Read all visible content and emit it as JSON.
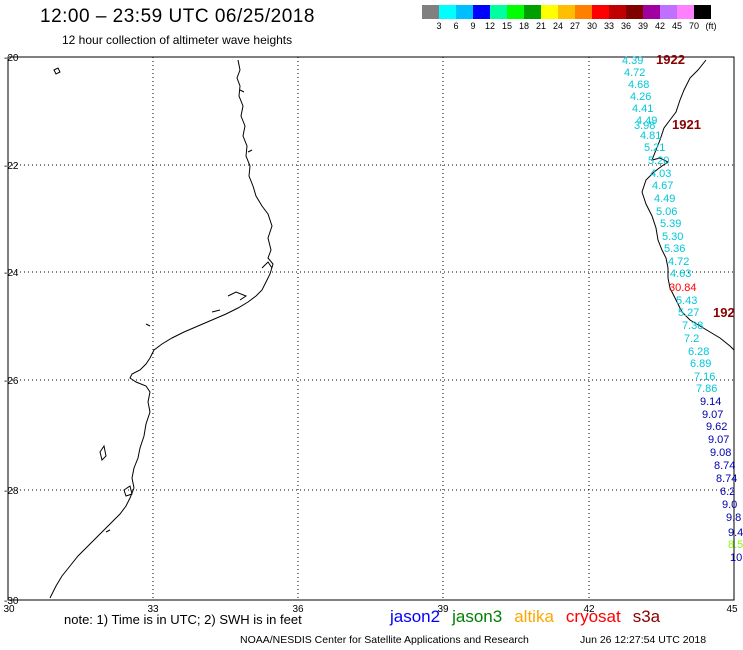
{
  "header": {
    "title": "12:00 – 23:59 UTC 06/25/2018",
    "subtitle": "12 hour collection of altimeter wave heights"
  },
  "legend": {
    "swatches": [
      "#808080",
      "#00ffff",
      "#00bfff",
      "#0000ff",
      "#00ffa0",
      "#00ff00",
      "#009f00",
      "#ffff00",
      "#ffbf00",
      "#ff7f00",
      "#ff0000",
      "#c00000",
      "#800000",
      "#a000a0",
      "#c070ff",
      "#ff80ff",
      "#000000"
    ],
    "labels": [
      "3",
      "6",
      "9",
      "12",
      "15",
      "18",
      "21",
      "24",
      "27",
      "30",
      "33",
      "36",
      "39",
      "42",
      "45",
      "70",
      "(ft)"
    ]
  },
  "map": {
    "lat_labels": [
      "-20",
      "-22",
      "-24",
      "-26",
      "-28",
      "-30"
    ],
    "lon_labels": [
      "30",
      "33",
      "36",
      "39",
      "42",
      "45"
    ]
  },
  "tracks": [
    {
      "id": "1922",
      "label": "1922",
      "color": "#8b0000"
    },
    {
      "id": "1921",
      "label": "1921",
      "color": "#8b0000"
    },
    {
      "id": "192x",
      "label": "192",
      "color": "#8b0000"
    }
  ],
  "swh_labels": {
    "cyan": [
      "4.39",
      "4.72",
      "4.68",
      "4.26",
      "4.41",
      "4.49",
      "3.98",
      "4.81",
      "5.21",
      "5.20",
      "4.03",
      "4.67",
      "4.49",
      "5.06",
      "5.39",
      "5.30",
      "5.36",
      "4.72",
      "4.63",
      "5.43",
      "5.27",
      "7.38",
      "7.2",
      "6.28",
      "6.89",
      "7.16",
      "7.86"
    ],
    "red": [
      "30.84"
    ],
    "blue": [
      "9.14",
      "9.07",
      "9.62",
      "9.07",
      "9.08",
      "8.74",
      "8.74",
      "6.2",
      "9.0",
      "9.8",
      "9.4",
      "10"
    ],
    "green": [
      "8.5"
    ]
  },
  "footer": {
    "note": "note: 1) Time is in UTC; 2) SWH is in feet",
    "satellites": [
      {
        "name": "jason2",
        "color": "#0000ff"
      },
      {
        "name": "jason3",
        "color": "#008000"
      },
      {
        "name": "altika",
        "color": "#ffa500"
      },
      {
        "name": "cryosat",
        "color": "#ff0000"
      },
      {
        "name": "s3a",
        "color": "#8b0000"
      }
    ],
    "credit": "NOAA/NESDIS Center for Satellite Applications and Research",
    "timestamp": "Jun 26 12:27:54 UTC 2018"
  }
}
